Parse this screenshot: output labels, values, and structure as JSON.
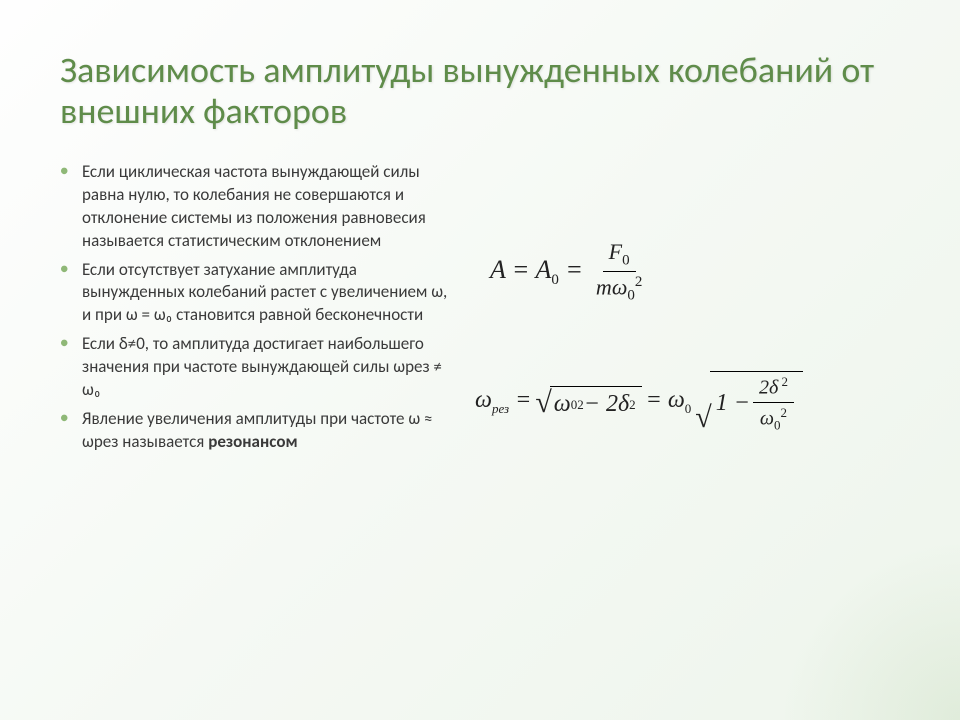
{
  "colors": {
    "title": "#5f8c4a",
    "bullet": "#8fb877",
    "text": "#3a3a3a",
    "bg_start": "#fefefe",
    "bg_end": "#eef5ec"
  },
  "title": "Зависимость амплитуды вынужденных колебаний от внешних факторов",
  "bullets": [
    "Если циклическая частота вынуждающей силы равна нулю, то колебания не совершаются и отклонение системы из положения равновесия называется статистическим отклонением",
    "Если отсутствует затухание амплитуда вынужденных колебаний растет с увеличением ω, и при ω = ω₀ становится равной бесконечности",
    "Если δ≠0, то  амплитуда достигает наибольшего значения при частоте вынуждающей силы ωрез ≠ ω₀",
    "Явление увеличения амплитуды при частоте ω ≈ ωрез  называется "
  ],
  "resonance_word": "резонансом",
  "formula1": {
    "lhs": "A = A",
    "lhs_sub": "0",
    "eq": " = ",
    "num": "F",
    "num_sub": "0",
    "den_m": "m",
    "den_omega": "ω",
    "den_sub": "0",
    "den_sup": "2"
  },
  "formula2": {
    "omega": "ω",
    "rez": "рез",
    "eq": " = ",
    "sqrt1_a": "ω",
    "sqrt1_a_sub": "0",
    "sqrt1_a_sup": "2",
    "minus": " − 2",
    "delta": "δ",
    "delta_sup": " 2",
    "eq2": " = ",
    "omega0": "ω",
    "omega0_sub": "0",
    "one_minus": "1 − ",
    "frac_num_2": "2",
    "frac_num_delta": "δ",
    "frac_num_sup": " 2",
    "frac_den_omega": "ω",
    "frac_den_sub": "0",
    "frac_den_sup": "2"
  }
}
